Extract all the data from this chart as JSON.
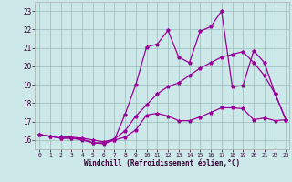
{
  "xlabel": "Windchill (Refroidissement éolien,°C)",
  "bg_color": "#cce8e8",
  "line_color": "#990099",
  "grid_color": "#99bbbb",
  "xlim_min": -0.4,
  "xlim_max": 23.3,
  "ylim_min": 15.5,
  "ylim_max": 23.5,
  "yticks": [
    16,
    17,
    18,
    19,
    20,
    21,
    22,
    23
  ],
  "xticks": [
    0,
    1,
    2,
    3,
    4,
    5,
    6,
    7,
    8,
    9,
    10,
    11,
    12,
    13,
    14,
    15,
    16,
    17,
    18,
    19,
    20,
    21,
    22,
    23
  ],
  "series1_x": [
    0,
    1,
    2,
    3,
    4,
    5,
    6,
    7,
    8,
    9,
    10,
    11,
    12,
    13,
    14,
    15,
    16,
    17,
    18,
    19,
    20,
    21,
    22,
    23
  ],
  "series1_y": [
    16.3,
    16.2,
    16.1,
    16.1,
    16.0,
    15.85,
    15.8,
    16.0,
    16.15,
    16.55,
    17.35,
    17.45,
    17.3,
    17.05,
    17.05,
    17.25,
    17.5,
    17.75,
    17.75,
    17.7,
    17.1,
    17.2,
    17.05,
    17.1
  ],
  "series2_x": [
    0,
    1,
    2,
    3,
    4,
    5,
    6,
    7,
    8,
    9,
    10,
    11,
    12,
    13,
    14,
    15,
    16,
    17,
    18,
    19,
    20,
    21,
    22,
    23
  ],
  "series2_y": [
    16.3,
    16.2,
    16.1,
    16.1,
    16.05,
    15.85,
    15.85,
    16.0,
    17.4,
    19.0,
    21.05,
    21.2,
    21.95,
    20.5,
    20.2,
    21.9,
    22.15,
    23.0,
    18.9,
    18.95,
    20.85,
    20.2,
    18.5,
    17.1
  ],
  "series3_x": [
    0,
    1,
    2,
    3,
    4,
    5,
    6,
    7,
    8,
    9,
    10,
    11,
    12,
    13,
    14,
    15,
    16,
    17,
    18,
    19,
    20,
    21,
    22,
    23
  ],
  "series3_y": [
    16.3,
    16.2,
    16.2,
    16.15,
    16.1,
    16.0,
    15.9,
    16.05,
    16.5,
    17.3,
    17.9,
    18.5,
    18.9,
    19.1,
    19.5,
    19.9,
    20.2,
    20.5,
    20.65,
    20.8,
    20.2,
    19.5,
    18.5,
    17.1
  ]
}
